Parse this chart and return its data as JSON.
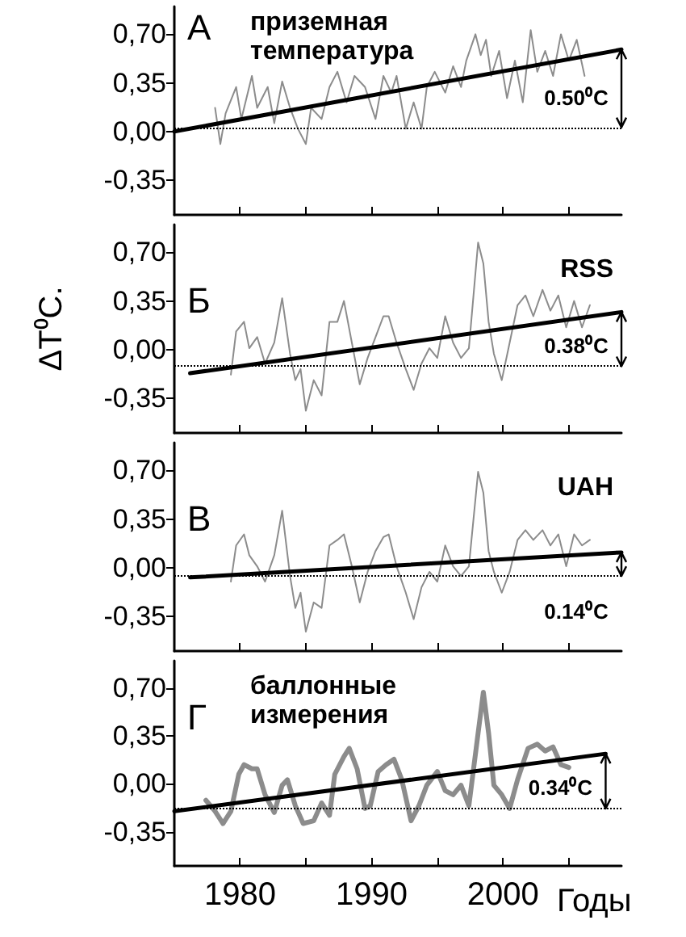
{
  "chart_data": [
    {
      "type": "line",
      "title": "приземная температура",
      "annotations": [
        "А",
        "0.50⁰C"
      ],
      "marker": "none",
      "tick_labels": "y",
      "xlim": [
        1975,
        2009
      ],
      "xticks": [
        1980,
        {
          "value": 1985,
          "label": null
        },
        1990,
        {
          "value": 1995,
          "label": null
        },
        2000,
        {
          "value": 2005,
          "label": null
        }
      ],
      "ylim": [
        -0.6,
        0.9
      ],
      "yticks": [
        {
          "value": -0.35,
          "label": "-0,35"
        },
        {
          "value": 0,
          "label": "0,00"
        },
        {
          "value": 0.35,
          "label": "0,35"
        },
        {
          "value": 0.7,
          "label": "0,70"
        }
      ],
      "ref_lines": [
        {
          "axis": "y",
          "value": 0.03,
          "color": "#000000",
          "line_style": "dotted"
        }
      ],
      "series": [
        {
          "color": "#8c8c8c",
          "x": [
            1978.1,
            1978.5,
            1978.9,
            1979.7,
            1980.1,
            1980.9,
            1981.3,
            1982.1,
            1982.6,
            1983.2,
            1983.8,
            1984.4,
            1985.0,
            1985.4,
            1986.2,
            1986.8,
            1987.4,
            1988.1,
            1988.7,
            1989.5,
            1990.3,
            1990.9,
            1991.5,
            1991.9,
            1992.6,
            1993.2,
            1993.8,
            1994.2,
            1994.8,
            1995.6,
            1996.2,
            1996.8,
            1997.2,
            1997.9,
            1998.3,
            1998.7,
            1999.1,
            1999.7,
            2000.3,
            2000.9,
            2001.5,
            2002.1,
            2002.6,
            2003.2,
            2003.8,
            2004.4,
            2005.0,
            2005.6,
            2006.2
          ],
          "values": [
            0.17,
            -0.09,
            0.13,
            0.32,
            0.09,
            0.4,
            0.17,
            0.32,
            0.06,
            0.36,
            0.17,
            0.02,
            -0.09,
            0.17,
            0.09,
            0.32,
            0.43,
            0.21,
            0.4,
            0.32,
            0.09,
            0.4,
            0.28,
            0.4,
            0.02,
            0.21,
            0.02,
            0.32,
            0.43,
            0.28,
            0.47,
            0.32,
            0.51,
            0.7,
            0.55,
            0.66,
            0.4,
            0.58,
            0.24,
            0.51,
            0.21,
            0.73,
            0.43,
            0.58,
            0.4,
            0.7,
            0.51,
            0.66,
            0.4
          ]
        },
        {
          "color": "#000000",
          "x": [
            1975,
            2009
          ],
          "values": [
            0.0,
            0.59
          ]
        }
      ]
    },
    {
      "type": "line",
      "title": "RSS",
      "ylabel": "ΔT⁰C.",
      "annotations": [
        "Б",
        "0.38⁰C"
      ],
      "marker": "none",
      "tick_labels": "y",
      "xlim": [
        1975,
        2009
      ],
      "xticks": [
        1980,
        {
          "value": 1985,
          "label": null
        },
        1990,
        {
          "value": 1995,
          "label": null
        },
        2000,
        {
          "value": 2005,
          "label": null
        }
      ],
      "ylim": [
        -0.6,
        0.9
      ],
      "yticks": [
        {
          "value": -0.35,
          "label": "-0,35"
        },
        {
          "value": 0,
          "label": "0,00"
        },
        {
          "value": 0.35,
          "label": "0,35"
        },
        {
          "value": 0.7,
          "label": "0,70"
        }
      ],
      "ref_lines": [
        {
          "axis": "y",
          "value": -0.12,
          "color": "#000000",
          "line_style": "dotted"
        }
      ],
      "series": [
        {
          "color": "#8c8c8c",
          "x": [
            1979.3,
            1979.7,
            1980.3,
            1980.7,
            1981.3,
            1981.9,
            1982.6,
            1983.2,
            1983.8,
            1984.2,
            1984.6,
            1985.0,
            1985.6,
            1986.2,
            1986.8,
            1987.4,
            1987.9,
            1988.5,
            1989.1,
            1989.7,
            1990.3,
            1990.9,
            1991.3,
            1991.9,
            1992.6,
            1993.2,
            1993.8,
            1994.4,
            1995.0,
            1995.6,
            1996.2,
            1996.8,
            1997.4,
            1998.1,
            1998.5,
            1998.9,
            1999.3,
            1999.9,
            2000.5,
            2001.1,
            2001.7,
            2002.3,
            2003.0,
            2003.6,
            2004.2,
            2004.8,
            2005.4,
            2006.0,
            2006.6
          ],
          "values": [
            -0.18,
            0.13,
            0.2,
            0.01,
            0.09,
            -0.1,
            0.05,
            0.37,
            -0.03,
            -0.22,
            -0.14,
            -0.44,
            -0.22,
            -0.33,
            0.2,
            0.2,
            0.35,
            0.05,
            -0.25,
            -0.06,
            0.09,
            0.24,
            0.24,
            0.05,
            -0.14,
            -0.29,
            -0.1,
            0.01,
            -0.06,
            0.24,
            0.05,
            -0.06,
            0.01,
            0.77,
            0.62,
            0.2,
            -0.03,
            -0.22,
            0.05,
            0.32,
            0.39,
            0.24,
            0.43,
            0.28,
            0.39,
            0.16,
            0.35,
            0.16,
            0.32
          ]
        },
        {
          "color": "#000000",
          "x": [
            1976.2,
            2009
          ],
          "values": [
            -0.17,
            0.27
          ]
        }
      ]
    },
    {
      "type": "line",
      "title": "UAH",
      "annotations": [
        "В",
        "0.14⁰C"
      ],
      "marker": "none",
      "tick_labels": "y",
      "xlim": [
        1975,
        2009
      ],
      "xticks": [
        1980,
        {
          "value": 1985,
          "label": null
        },
        1990,
        {
          "value": 1995,
          "label": null
        },
        2000,
        {
          "value": 2005,
          "label": null
        }
      ],
      "ylim": [
        -0.6,
        0.9
      ],
      "yticks": [
        {
          "value": -0.35,
          "label": "-0,35"
        },
        {
          "value": 0,
          "label": "0,00"
        },
        {
          "value": 0.35,
          "label": "0,35"
        },
        {
          "value": 0.7,
          "label": "0,70"
        }
      ],
      "ref_lines": [
        {
          "axis": "y",
          "value": -0.06,
          "color": "#000000",
          "line_style": "dotted"
        }
      ],
      "series": [
        {
          "color": "#8c8c8c",
          "x": [
            1979.3,
            1979.7,
            1980.3,
            1980.7,
            1981.3,
            1981.9,
            1982.6,
            1983.2,
            1983.8,
            1984.2,
            1984.6,
            1985.0,
            1985.6,
            1986.2,
            1986.8,
            1987.4,
            1987.9,
            1988.5,
            1989.1,
            1989.7,
            1990.3,
            1990.9,
            1991.3,
            1991.9,
            1992.6,
            1993.2,
            1993.8,
            1994.4,
            1995.0,
            1995.6,
            1996.2,
            1996.8,
            1997.4,
            1998.1,
            1998.5,
            1998.9,
            1999.3,
            1999.9,
            2000.5,
            2001.1,
            2001.7,
            2002.3,
            2003.0,
            2003.6,
            2004.2,
            2004.8,
            2005.4,
            2006.0,
            2006.6
          ],
          "values": [
            -0.1,
            0.16,
            0.24,
            0.09,
            0.01,
            -0.1,
            0.09,
            0.41,
            -0.06,
            -0.29,
            -0.18,
            -0.46,
            -0.25,
            -0.29,
            0.16,
            0.2,
            0.24,
            0.01,
            -0.25,
            -0.03,
            0.12,
            0.22,
            0.24,
            0.01,
            -0.18,
            -0.37,
            -0.14,
            -0.03,
            -0.1,
            0.16,
            0.01,
            -0.06,
            0.01,
            0.69,
            0.54,
            0.12,
            -0.03,
            -0.18,
            -0.03,
            0.2,
            0.27,
            0.2,
            0.27,
            0.16,
            0.24,
            0.01,
            0.24,
            0.16,
            0.2
          ]
        },
        {
          "color": "#000000",
          "x": [
            1976.2,
            2009
          ],
          "values": [
            -0.07,
            0.11
          ]
        }
      ]
    },
    {
      "type": "line",
      "title": "баллонные измерения",
      "xlabel": "Годы",
      "annotations": [
        "Г",
        "0.34⁰C"
      ],
      "marker": "none",
      "xlim": [
        1975,
        2009
      ],
      "xticks": [
        1980,
        {
          "value": 1985,
          "label": null
        },
        1990,
        {
          "value": 1995,
          "label": null
        },
        2000,
        {
          "value": 2005,
          "label": null
        }
      ],
      "ylim": [
        -0.6,
        0.9
      ],
      "yticks": [
        {
          "value": -0.35,
          "label": "-0,35"
        },
        {
          "value": 0,
          "label": "0,00"
        },
        {
          "value": 0.35,
          "label": "0,35"
        },
        {
          "value": 0.7,
          "label": "0,70"
        }
      ],
      "ref_lines": [
        {
          "axis": "y",
          "value": -0.18,
          "color": "#000000",
          "line_style": "dotted"
        }
      ],
      "series": [
        {
          "color": "#8c8c8c",
          "x": [
            1977.4,
            1978.1,
            1978.7,
            1979.3,
            1979.9,
            1980.3,
            1980.9,
            1981.3,
            1981.9,
            1982.6,
            1983.2,
            1983.6,
            1984.2,
            1984.8,
            1985.6,
            1986.2,
            1986.8,
            1987.2,
            1987.9,
            1988.3,
            1988.9,
            1989.5,
            1989.9,
            1990.5,
            1991.1,
            1991.7,
            1992.3,
            1993.0,
            1993.6,
            1994.2,
            1995.0,
            1995.6,
            1996.2,
            1996.8,
            1997.4,
            1998.1,
            1998.5,
            1998.9,
            1999.3,
            1999.9,
            2000.5,
            2001.1,
            2001.9,
            2002.6,
            2003.2,
            2003.8,
            2004.4,
            2005.0
          ],
          "values": [
            -0.12,
            -0.2,
            -0.29,
            -0.2,
            0.07,
            0.14,
            0.11,
            0.11,
            -0.08,
            -0.21,
            -0.01,
            0.03,
            -0.16,
            -0.29,
            -0.27,
            -0.14,
            -0.23,
            0.07,
            0.2,
            0.26,
            0.11,
            -0.18,
            -0.16,
            0.09,
            0.14,
            0.18,
            0.03,
            -0.27,
            -0.16,
            -0.01,
            0.09,
            -0.05,
            -0.08,
            -0.01,
            -0.16,
            0.37,
            0.67,
            0.37,
            -0.01,
            -0.08,
            -0.18,
            0.03,
            0.26,
            0.29,
            0.24,
            0.27,
            0.14,
            0.12
          ]
        },
        {
          "color": "#000000",
          "x": [
            1975,
            2007.8
          ],
          "values": [
            -0.2,
            0.22
          ]
        }
      ]
    }
  ]
}
